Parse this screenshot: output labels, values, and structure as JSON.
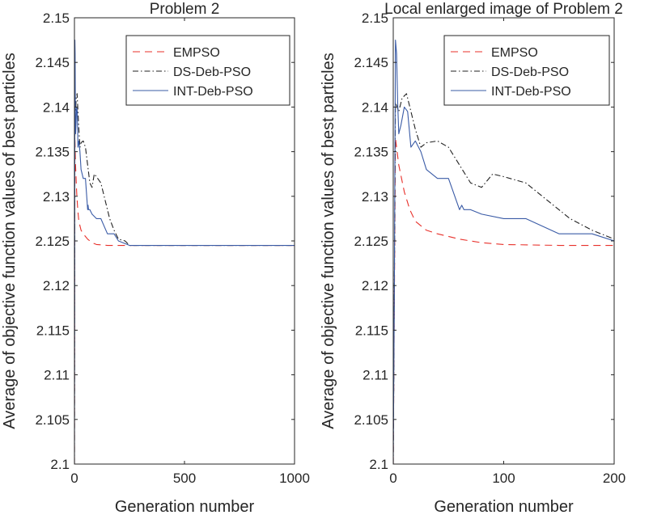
{
  "chart_data": [
    {
      "type": "line",
      "title": "Problem 2",
      "xlabel": "Generation number",
      "ylabel": "Average of objective function values of best particles",
      "xlim": [
        0,
        1000
      ],
      "ylim": [
        2.1,
        2.15
      ],
      "xticks": [
        "0",
        "500",
        "1000"
      ],
      "yticks": [
        "2.1",
        "2.105",
        "2.11",
        "2.115",
        "2.12",
        "2.125",
        "2.13",
        "2.135",
        "2.14",
        "2.145",
        "2.15"
      ],
      "legend": "top-right",
      "series": [
        {
          "name": "EMPSO",
          "style": "dashed",
          "color": "#e8302a",
          "x": [
            0,
            2,
            5,
            10,
            15,
            20,
            30,
            40,
            60,
            80,
            100,
            150,
            200,
            300,
            500,
            1000
          ],
          "y": [
            2.1,
            2.1365,
            2.1335,
            2.1305,
            2.1285,
            2.1272,
            2.1262,
            2.1258,
            2.1252,
            2.1248,
            2.1246,
            2.1245,
            2.1245,
            2.1245,
            2.1245,
            2.1245
          ]
        },
        {
          "name": "DS-Deb-PSO",
          "style": "dashdot",
          "color": "#222222",
          "x": [
            0,
            2,
            5,
            8,
            12,
            16,
            20,
            25,
            30,
            40,
            50,
            60,
            70,
            80,
            90,
            100,
            120,
            140,
            160,
            180,
            200,
            230,
            250,
            300,
            500,
            1000
          ],
          "y": [
            2.1,
            2.1405,
            2.1395,
            2.141,
            2.1415,
            2.1395,
            2.1375,
            2.1355,
            2.136,
            2.1362,
            2.1355,
            2.1335,
            2.1315,
            2.131,
            2.1325,
            2.1322,
            2.1315,
            2.1295,
            2.1275,
            2.1262,
            2.1252,
            2.125,
            2.1245,
            2.1245,
            2.1245,
            2.1245
          ]
        },
        {
          "name": "INT-Deb-PSO",
          "style": "solid",
          "color": "#3a5ba6",
          "x": [
            0,
            1,
            2,
            3,
            4,
            5,
            7,
            10,
            13,
            16,
            20,
            25,
            30,
            40,
            50,
            60,
            62,
            64,
            70,
            80,
            100,
            120,
            150,
            180,
            200,
            250,
            300,
            500,
            1000
          ],
          "y": [
            2.1,
            2.12,
            2.1475,
            2.146,
            2.1405,
            2.137,
            2.138,
            2.14,
            2.1395,
            2.1355,
            2.1362,
            2.135,
            2.133,
            2.132,
            2.132,
            2.1285,
            2.129,
            2.1285,
            2.1285,
            2.128,
            2.1275,
            2.1275,
            2.1258,
            2.1258,
            2.125,
            2.1245,
            2.1245,
            2.1245,
            2.1245
          ]
        }
      ]
    },
    {
      "type": "line",
      "title": "Local enlarged image of Problem 2",
      "xlabel": "Generation number",
      "ylabel": "Average of objective function values of best particles",
      "xlim": [
        0,
        200
      ],
      "ylim": [
        2.1,
        2.15
      ],
      "xticks": [
        "0",
        "100",
        "200"
      ],
      "yticks": [
        "2.1",
        "2.105",
        "2.11",
        "2.115",
        "2.12",
        "2.125",
        "2.13",
        "2.135",
        "2.14",
        "2.145",
        "2.15"
      ],
      "legend": "top-right",
      "series": [
        {
          "name": "EMPSO",
          "style": "dashed",
          "color": "#e8302a",
          "x": [
            0,
            2,
            5,
            10,
            15,
            20,
            30,
            40,
            60,
            80,
            100,
            150,
            200
          ],
          "y": [
            2.1,
            2.1365,
            2.1335,
            2.1305,
            2.1285,
            2.1272,
            2.1262,
            2.1258,
            2.1252,
            2.1248,
            2.1246,
            2.1245,
            2.1245
          ]
        },
        {
          "name": "DS-Deb-PSO",
          "style": "dashdot",
          "color": "#222222",
          "x": [
            0,
            2,
            5,
            8,
            12,
            16,
            20,
            25,
            30,
            40,
            50,
            60,
            70,
            80,
            90,
            100,
            120,
            140,
            160,
            180,
            200
          ],
          "y": [
            2.1,
            2.1405,
            2.1395,
            2.141,
            2.1415,
            2.1395,
            2.1375,
            2.1355,
            2.136,
            2.1362,
            2.1355,
            2.1335,
            2.1315,
            2.131,
            2.1325,
            2.1322,
            2.1315,
            2.1295,
            2.1275,
            2.1262,
            2.1252
          ]
        },
        {
          "name": "INT-Deb-PSO",
          "style": "solid",
          "color": "#3a5ba6",
          "x": [
            0,
            1,
            2,
            3,
            4,
            5,
            7,
            10,
            13,
            16,
            20,
            25,
            30,
            40,
            50,
            60,
            62,
            64,
            70,
            80,
            100,
            120,
            150,
            180,
            200
          ],
          "y": [
            2.1,
            2.12,
            2.1475,
            2.146,
            2.1405,
            2.137,
            2.138,
            2.14,
            2.1395,
            2.1355,
            2.1362,
            2.135,
            2.133,
            2.132,
            2.132,
            2.1285,
            2.129,
            2.1285,
            2.1285,
            2.128,
            2.1275,
            2.1275,
            2.1258,
            2.1258,
            2.125
          ]
        }
      ]
    }
  ]
}
